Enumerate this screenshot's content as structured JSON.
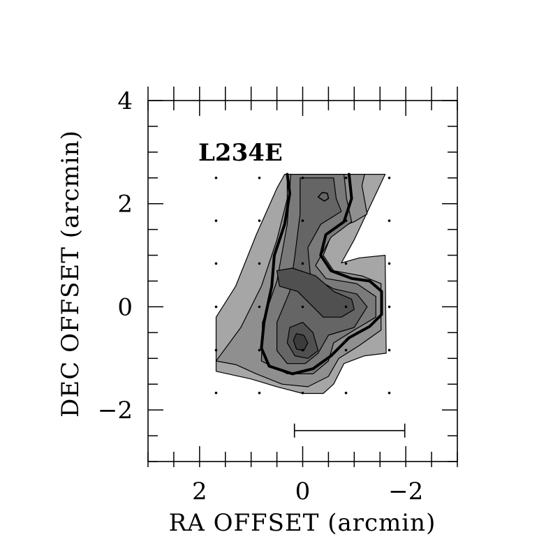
{
  "chart_data": {
    "type": "contour",
    "title": "L234E",
    "xlabel": "RA OFFSET (arcmin)",
    "ylabel": "DEC OFFSET (arcmin)",
    "xlim": [
      3.0,
      -3.0
    ],
    "ylim": [
      -3.0,
      4.0
    ],
    "x_ticks": [
      2,
      0,
      -2
    ],
    "x_tick_labels": [
      "2",
      "0",
      "−2"
    ],
    "y_ticks": [
      4,
      2,
      0,
      -2
    ],
    "y_tick_labels": [
      "4",
      "2",
      "0",
      "−2"
    ],
    "x_minor_step": 0.5,
    "y_minor_step": 0.5,
    "grid": false,
    "sample_points": [
      [
        1.68,
        2.5
      ],
      [
        0.84,
        2.5
      ],
      [
        0,
        2.5
      ],
      [
        -0.84,
        2.5
      ],
      [
        -1.68,
        2.5
      ],
      [
        1.68,
        1.67
      ],
      [
        0.84,
        1.67
      ],
      [
        0,
        1.67
      ],
      [
        -0.84,
        1.67
      ],
      [
        -1.68,
        1.67
      ],
      [
        1.68,
        0.84
      ],
      [
        0.84,
        0.84
      ],
      [
        0,
        0.84
      ],
      [
        -0.84,
        0.84
      ],
      [
        -1.68,
        0.84
      ],
      [
        1.68,
        0
      ],
      [
        0.84,
        0
      ],
      [
        0,
        0
      ],
      [
        -0.84,
        0
      ],
      [
        -1.68,
        0
      ],
      [
        1.68,
        -0.84
      ],
      [
        0.84,
        -0.84
      ],
      [
        0,
        -0.84
      ],
      [
        -0.84,
        -0.84
      ],
      [
        -1.68,
        -0.84
      ],
      [
        1.68,
        -1.67
      ],
      [
        0.84,
        -1.67
      ],
      [
        0,
        -1.67
      ],
      [
        -0.84,
        -1.67
      ],
      [
        -1.68,
        -1.67
      ]
    ],
    "scale_bar": {
      "x_from": 0.16,
      "x_to": -1.98,
      "y": -2.4
    },
    "fill_levels": [
      {
        "level": 1,
        "color": "#a6a6a6",
        "polygon": [
          [
            1.68,
            -1.25
          ],
          [
            1.68,
            -0.2
          ],
          [
            1.3,
            0.4
          ],
          [
            0.9,
            1.4
          ],
          [
            0.5,
            2.3
          ],
          [
            0.35,
            2.57
          ],
          [
            -1.6,
            2.57
          ],
          [
            -1.0,
            1.3
          ],
          [
            -0.75,
            0.85
          ],
          [
            -1.1,
            0.95
          ],
          [
            -1.6,
            1.0
          ],
          [
            -1.62,
            -0.9
          ],
          [
            -1.2,
            -0.95
          ],
          [
            -0.8,
            -1.1
          ],
          [
            -0.6,
            -1.5
          ],
          [
            -0.4,
            -1.68
          ],
          [
            0.0,
            -1.68
          ],
          [
            0.5,
            -1.55
          ],
          [
            1.0,
            -1.4
          ]
        ]
      },
      {
        "level": 2,
        "color": "#8f8f8f",
        "polygon": [
          [
            1.68,
            -1.05
          ],
          [
            1.2,
            -0.4
          ],
          [
            0.8,
            0.4
          ],
          [
            0.5,
            1.3
          ],
          [
            0.3,
            2.1
          ],
          [
            0.3,
            2.57
          ],
          [
            -1.2,
            2.57
          ],
          [
            -1.15,
            2.35
          ],
          [
            -1.25,
            1.8
          ],
          [
            -1.0,
            1.65
          ],
          [
            -0.6,
            1.5
          ],
          [
            -0.4,
            1.0
          ],
          [
            -0.6,
            0.7
          ],
          [
            -1.15,
            0.6
          ],
          [
            -1.52,
            0.45
          ],
          [
            -1.52,
            -0.45
          ],
          [
            -1.1,
            -0.75
          ],
          [
            -0.7,
            -1.0
          ],
          [
            -0.5,
            -1.35
          ],
          [
            -0.1,
            -1.55
          ],
          [
            0.4,
            -1.5
          ],
          [
            0.9,
            -1.3
          ],
          [
            1.3,
            -1.12
          ]
        ]
      },
      {
        "level": 3,
        "color": "#7a7a7a",
        "polygon": [
          [
            0.8,
            -1.05
          ],
          [
            0.78,
            -0.3
          ],
          [
            0.5,
            0.5
          ],
          [
            0.3,
            1.6
          ],
          [
            0.23,
            2.57
          ],
          [
            -0.8,
            2.57
          ],
          [
            -0.85,
            2.1
          ],
          [
            -0.95,
            1.65
          ],
          [
            -0.55,
            1.35
          ],
          [
            -0.25,
            0.8
          ],
          [
            -0.45,
            0.55
          ],
          [
            -1.05,
            0.45
          ],
          [
            -1.42,
            0.2
          ],
          [
            -1.42,
            -0.2
          ],
          [
            -1.0,
            -0.45
          ],
          [
            -0.6,
            -0.7
          ],
          [
            -0.5,
            -1.05
          ],
          [
            -0.2,
            -1.3
          ],
          [
            0.3,
            -1.3
          ]
        ]
      },
      {
        "level": 4,
        "color": "#656565",
        "polygon": [
          [
            0.5,
            -0.85
          ],
          [
            0.5,
            -0.3
          ],
          [
            0.25,
            0.3
          ],
          [
            0.15,
            1.0
          ],
          [
            0.05,
            1.8
          ],
          [
            0.05,
            2.5
          ],
          [
            -0.6,
            2.5
          ],
          [
            -0.65,
            2.1
          ],
          [
            -0.75,
            1.85
          ],
          [
            -0.35,
            1.6
          ],
          [
            -0.1,
            1.15
          ],
          [
            -0.15,
            0.6
          ],
          [
            -0.6,
            0.35
          ],
          [
            -1.05,
            0.25
          ],
          [
            -1.25,
            0.0
          ],
          [
            -1.0,
            -0.4
          ],
          [
            -0.5,
            -0.55
          ],
          [
            -0.3,
            -0.9
          ],
          [
            -0.05,
            -1.1
          ],
          [
            0.3,
            -1.1
          ]
        ]
      },
      {
        "level": 5,
        "color": "#505050",
        "polygon": [
          [
            0.3,
            -0.7
          ],
          [
            0.25,
            -0.4
          ],
          [
            0.0,
            -0.3
          ],
          [
            -0.2,
            -0.5
          ],
          [
            -0.3,
            -0.85
          ],
          [
            -0.1,
            -1.0
          ],
          [
            0.15,
            -0.95
          ]
        ]
      },
      {
        "level": 5,
        "color": "#505050",
        "polygon": [
          [
            0.5,
            0.7
          ],
          [
            0.2,
            0.75
          ],
          [
            -0.25,
            0.6
          ],
          [
            -0.6,
            0.3
          ],
          [
            -0.95,
            0.15
          ],
          [
            -1.0,
            -0.05
          ],
          [
            -0.75,
            -0.2
          ],
          [
            -0.4,
            -0.2
          ],
          [
            -0.2,
            0.0
          ],
          [
            0.1,
            0.3
          ],
          [
            0.45,
            0.4
          ]
        ]
      },
      {
        "level": 6,
        "color": "#3c3c3c",
        "polygon": [
          [
            0.18,
            -0.65
          ],
          [
            0.12,
            -0.52
          ],
          [
            -0.02,
            -0.55
          ],
          [
            -0.1,
            -0.7
          ],
          [
            -0.02,
            -0.85
          ],
          [
            0.12,
            -0.82
          ]
        ]
      }
    ],
    "contour_lines": [
      {
        "closed": true,
        "width": 1.5,
        "points": [
          [
            -0.3,
            2.13
          ],
          [
            -0.38,
            2.22
          ],
          [
            -0.48,
            2.2
          ],
          [
            -0.5,
            2.1
          ],
          [
            -0.42,
            2.05
          ]
        ]
      },
      {
        "closed": false,
        "width": 4,
        "points": [
          [
            0.3,
            2.57
          ],
          [
            0.25,
            2.2
          ],
          [
            0.35,
            1.6
          ],
          [
            0.55,
            1.0
          ],
          [
            0.6,
            0.4
          ],
          [
            0.75,
            -0.3
          ],
          [
            0.8,
            -0.8
          ],
          [
            0.65,
            -1.15
          ],
          [
            0.2,
            -1.3
          ],
          [
            -0.2,
            -1.2
          ],
          [
            -0.55,
            -0.95
          ],
          [
            -0.9,
            -0.6
          ],
          [
            -1.3,
            -0.38
          ],
          [
            -1.53,
            -0.15
          ],
          [
            -1.53,
            0.3
          ],
          [
            -1.3,
            0.5
          ],
          [
            -0.95,
            0.55
          ],
          [
            -0.55,
            0.7
          ],
          [
            -0.35,
            1.0
          ],
          [
            -0.45,
            1.4
          ],
          [
            -0.8,
            1.65
          ],
          [
            -0.95,
            2.1
          ],
          [
            -0.9,
            2.57
          ]
        ]
      }
    ]
  }
}
